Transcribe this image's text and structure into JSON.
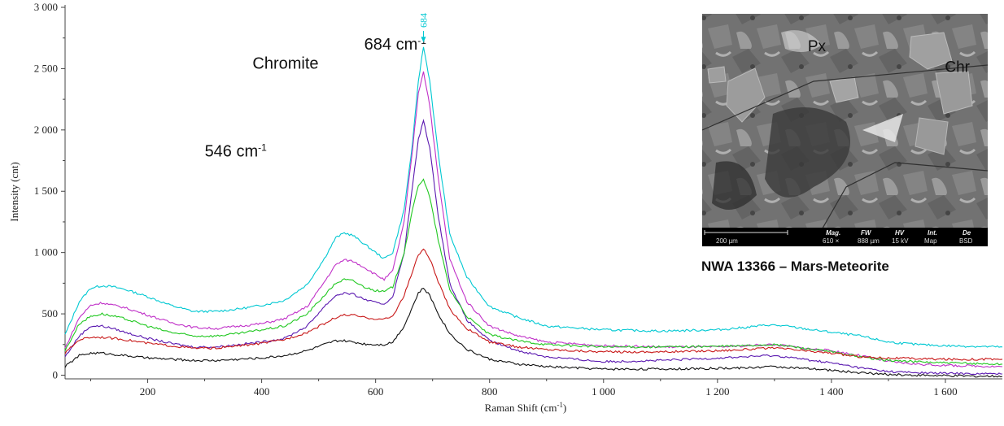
{
  "chart_data": {
    "type": "line",
    "xlabel": "Raman Shift",
    "xlabel_unit": "(cm",
    "xlabel_unit_sup": "-1",
    "xlabel_unit_close": ")",
    "ylabel": "Intensity (cnt)",
    "xlim": [
      55,
      1700
    ],
    "ylim": [
      -30,
      3020
    ],
    "x_ticks": [
      200,
      400,
      600,
      800,
      1000,
      1200,
      1400,
      1600
    ],
    "x_tick_labels": [
      "200",
      "400",
      "600",
      "800",
      "1 000",
      "1 200",
      "1 400",
      "1 600"
    ],
    "y_ticks": [
      0,
      500,
      1000,
      1500,
      2000,
      2500,
      3000
    ],
    "y_tick_labels": [
      "0",
      "500",
      "1 000",
      "1 500",
      "2 000",
      "2 500",
      "3 000"
    ],
    "grid": false,
    "legend": "none",
    "series": [
      {
        "color": "#00c8d2",
        "x": [
          55,
          80,
          100,
          120,
          140,
          160,
          200,
          240,
          280,
          320,
          360,
          400,
          440,
          480,
          510,
          530,
          545,
          560,
          580,
          600,
          615,
          630,
          650,
          665,
          675,
          684,
          695,
          710,
          730,
          760,
          800,
          850,
          900,
          1000,
          1100,
          1200,
          1250,
          1290,
          1320,
          1350,
          1400,
          1450,
          1500,
          1550,
          1600,
          1650,
          1700
        ],
        "y": [
          330,
          600,
          710,
          730,
          720,
          700,
          640,
          570,
          520,
          520,
          540,
          570,
          610,
          740,
          950,
          1120,
          1160,
          1140,
          1070,
          1000,
          950,
          1000,
          1350,
          1900,
          2400,
          2680,
          2400,
          1800,
          1150,
          800,
          560,
          470,
          400,
          370,
          360,
          370,
          390,
          410,
          400,
          380,
          350,
          320,
          270,
          250,
          240,
          235,
          230
        ]
      },
      {
        "color": "#c030c8",
        "x": [
          55,
          80,
          100,
          120,
          140,
          160,
          200,
          240,
          280,
          320,
          360,
          400,
          440,
          480,
          510,
          530,
          545,
          560,
          580,
          600,
          615,
          630,
          650,
          665,
          675,
          684,
          695,
          710,
          730,
          760,
          800,
          850,
          900,
          1000,
          1100,
          1200,
          1250,
          1290,
          1320,
          1350,
          1400,
          1450,
          1500,
          1550,
          1600,
          1650,
          1700
        ],
        "y": [
          220,
          470,
          570,
          590,
          570,
          550,
          490,
          430,
          390,
          380,
          400,
          420,
          460,
          560,
          760,
          900,
          940,
          930,
          880,
          820,
          780,
          850,
          1250,
          1850,
          2300,
          2480,
          2200,
          1600,
          950,
          600,
          400,
          320,
          270,
          240,
          230,
          230,
          240,
          250,
          240,
          220,
          200,
          160,
          110,
          90,
          80,
          75,
          70
        ]
      },
      {
        "color": "#5a18b0",
        "x": [
          55,
          80,
          100,
          120,
          140,
          160,
          200,
          240,
          280,
          320,
          360,
          400,
          440,
          480,
          510,
          530,
          545,
          560,
          580,
          600,
          615,
          630,
          650,
          665,
          675,
          684,
          695,
          710,
          730,
          760,
          800,
          850,
          900,
          1000,
          1100,
          1200,
          1250,
          1290,
          1320,
          1350,
          1400,
          1450,
          1500,
          1550,
          1600,
          1650,
          1700
        ],
        "y": [
          150,
          320,
          400,
          400,
          380,
          350,
          300,
          260,
          230,
          230,
          250,
          270,
          300,
          400,
          560,
          650,
          670,
          660,
          620,
          590,
          580,
          640,
          1000,
          1550,
          1920,
          2080,
          1850,
          1300,
          750,
          450,
          280,
          200,
          150,
          110,
          120,
          140,
          150,
          160,
          150,
          130,
          100,
          60,
          30,
          20,
          15,
          12,
          10
        ]
      },
      {
        "color": "#20c820",
        "x": [
          55,
          80,
          100,
          120,
          140,
          160,
          200,
          240,
          280,
          320,
          360,
          400,
          440,
          480,
          510,
          530,
          545,
          560,
          580,
          600,
          615,
          630,
          650,
          665,
          675,
          684,
          695,
          710,
          730,
          760,
          800,
          850,
          900,
          1000,
          1100,
          1200,
          1250,
          1290,
          1320,
          1350,
          1400,
          1450,
          1500,
          1550,
          1600,
          1650,
          1700
        ],
        "y": [
          200,
          420,
          480,
          500,
          480,
          460,
          400,
          350,
          320,
          320,
          340,
          370,
          400,
          500,
          650,
          750,
          780,
          770,
          720,
          690,
          680,
          720,
          1000,
          1350,
          1550,
          1600,
          1450,
          1100,
          700,
          480,
          330,
          280,
          250,
          230,
          230,
          235,
          240,
          250,
          240,
          220,
          190,
          150,
          120,
          110,
          100,
          95,
          90
        ]
      },
      {
        "color": "#c81818",
        "x": [
          55,
          80,
          100,
          120,
          140,
          160,
          200,
          240,
          280,
          320,
          360,
          400,
          440,
          480,
          510,
          530,
          545,
          560,
          580,
          600,
          615,
          630,
          650,
          665,
          675,
          684,
          695,
          710,
          730,
          760,
          800,
          850,
          900,
          1000,
          1100,
          1200,
          1250,
          1290,
          1320,
          1350,
          1400,
          1450,
          1500,
          1550,
          1600,
          1650,
          1700
        ],
        "y": [
          180,
          290,
          310,
          310,
          300,
          290,
          260,
          240,
          220,
          220,
          240,
          260,
          290,
          350,
          420,
          470,
          490,
          490,
          470,
          460,
          455,
          480,
          650,
          850,
          980,
          1030,
          950,
          760,
          540,
          380,
          270,
          230,
          210,
          190,
          190,
          200,
          210,
          220,
          215,
          200,
          180,
          150,
          140,
          135,
          130,
          130,
          130
        ]
      },
      {
        "color": "#111111",
        "x": [
          55,
          80,
          100,
          120,
          140,
          160,
          200,
          240,
          280,
          320,
          360,
          400,
          440,
          480,
          510,
          530,
          545,
          560,
          580,
          600,
          615,
          630,
          650,
          665,
          675,
          684,
          695,
          710,
          730,
          760,
          800,
          850,
          900,
          1000,
          1100,
          1200,
          1250,
          1290,
          1320,
          1350,
          1400,
          1450,
          1500,
          1550,
          1600,
          1650,
          1700
        ],
        "y": [
          70,
          160,
          180,
          180,
          170,
          160,
          140,
          130,
          120,
          120,
          130,
          140,
          160,
          200,
          250,
          280,
          280,
          270,
          255,
          250,
          250,
          270,
          400,
          560,
          670,
          710,
          650,
          500,
          340,
          210,
          130,
          90,
          70,
          50,
          50,
          55,
          60,
          70,
          65,
          55,
          40,
          20,
          5,
          0,
          -5,
          -8,
          -10
        ]
      }
    ],
    "annotations": [
      {
        "x": 384,
        "y": 2500,
        "text": "Chromite"
      },
      {
        "x": 300,
        "y": 1785,
        "text": "546 cm",
        "sup": "-1"
      },
      {
        "x": 580,
        "y": 2655,
        "text": "684 cm",
        "sup": "-1"
      }
    ],
    "peak_marker": {
      "x": 684,
      "label": "684"
    }
  },
  "inset": {
    "labels": [
      {
        "text": "Px",
        "rel": [
          0.37,
          0.16
        ]
      },
      {
        "text": "Chr",
        "rel": [
          0.85,
          0.25
        ]
      }
    ],
    "scale_bar_text": "200 µm",
    "info_columns": [
      {
        "title": "Mag.",
        "value": "610 ×"
      },
      {
        "title": "FW",
        "value": "888 µm"
      },
      {
        "title": "HV",
        "value": "15 kV"
      },
      {
        "title": "Int.",
        "value": "Map"
      },
      {
        "title": "De",
        "value": "BSD"
      }
    ],
    "caption": "NWA 13366 – Mars-Meteorite"
  }
}
